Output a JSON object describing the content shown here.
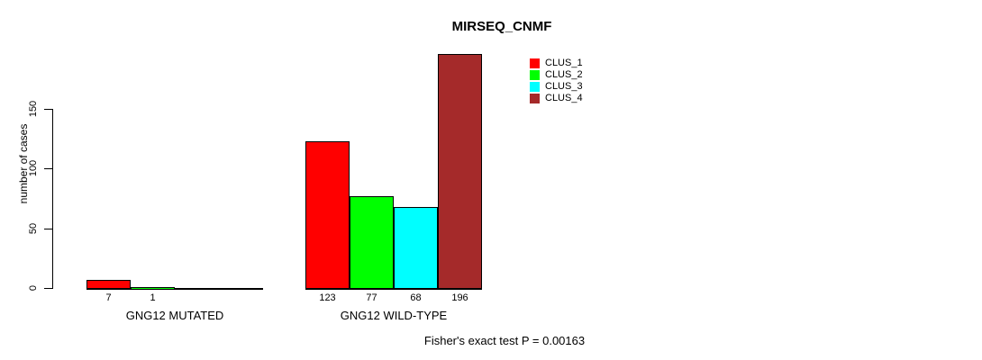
{
  "chart_data": {
    "type": "bar",
    "title": "MIRSEQ_CNMF",
    "ylabel": "number of cases",
    "xlabel": "",
    "yticks": [
      0,
      50,
      100,
      150
    ],
    "ylim": [
      0,
      150
    ],
    "grid": false,
    "legend_position": "top-right",
    "categories": [
      "GNG12 MUTATED",
      "GNG12 WILD-TYPE"
    ],
    "series": [
      {
        "name": "CLUS_1",
        "color": "#ff0000",
        "values": [
          7,
          123
        ]
      },
      {
        "name": "CLUS_2",
        "color": "#00ff00",
        "values": [
          1,
          77
        ]
      },
      {
        "name": "CLUS_3",
        "color": "#00ffff",
        "values": [
          0,
          68
        ]
      },
      {
        "name": "CLUS_4",
        "color": "#a52a2a",
        "values": [
          0,
          196
        ]
      }
    ],
    "groups": [
      {
        "label": "GNG12 MUTATED",
        "values": [
          7,
          1,
          0,
          0
        ],
        "bar_labels": [
          "7",
          "1",
          "",
          ""
        ]
      },
      {
        "label": "GNG12 WILD-TYPE",
        "values": [
          123,
          77,
          68,
          196
        ],
        "bar_labels": [
          "123",
          "77",
          "68",
          "196"
        ]
      }
    ],
    "legend": {
      "items": [
        {
          "label": "CLUS_1",
          "color": "#ff0000"
        },
        {
          "label": "CLUS_2",
          "color": "#00ff00"
        },
        {
          "label": "CLUS_3",
          "color": "#00ffff"
        },
        {
          "label": "CLUS_4",
          "color": "#a52a2a"
        }
      ]
    },
    "footnote": "Fisher's exact test P = 0.00163"
  }
}
